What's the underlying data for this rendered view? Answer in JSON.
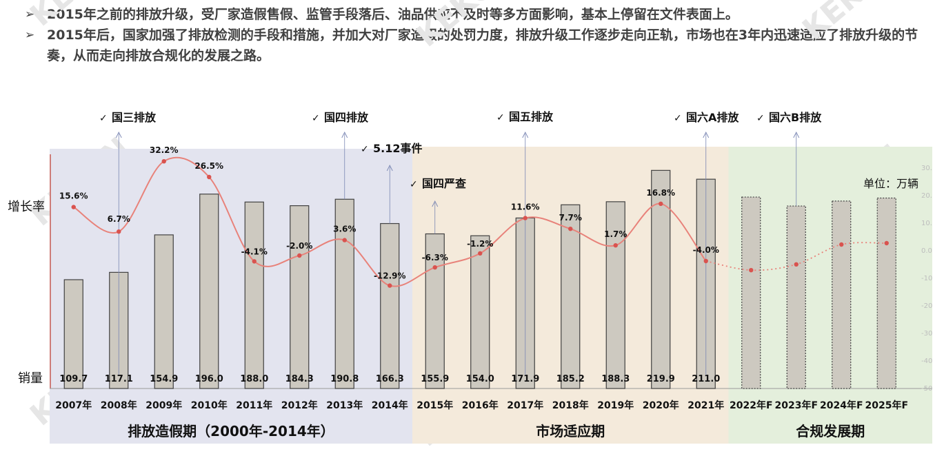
{
  "bullets": [
    {
      "marker": "➢",
      "text": "2015年之前的排放升级，受厂家造假售假、监管手段落后、油品供应不及时等多方面影响，基本上停留在文件表面上。"
    },
    {
      "marker": "➢",
      "text": "2015年后，国家加强了排放检测的手段和措施，并加大对厂家造假的处罚力度，排放升级工作逐步走向正轨，市场也在3年内迅速适应了排放升级的节奏，从而走向排放合规化的发展之路。"
    }
  ],
  "chart_data": {
    "type": "bar+line",
    "categories": [
      "2007年",
      "2008年",
      "2009年",
      "2010年",
      "2011年",
      "2012年",
      "2013年",
      "2014年",
      "2015年",
      "2016年",
      "2017年",
      "2018年",
      "2019年",
      "2020年",
      "2021年",
      "2022年F",
      "2023年F",
      "2024年F",
      "2025年F"
    ],
    "sales": [
      109.7,
      117.1,
      154.9,
      196.0,
      188.0,
      184.3,
      190.8,
      166.3,
      155.9,
      154.0,
      171.9,
      185.2,
      188.3,
      219.9,
      211.0,
      null,
      null,
      null,
      null
    ],
    "sales_forecast": [
      null,
      null,
      null,
      null,
      null,
      null,
      null,
      null,
      null,
      null,
      null,
      null,
      null,
      null,
      null,
      193,
      184,
      189,
      192
    ],
    "growth": [
      15.6,
      6.7,
      32.2,
      26.5,
      -4.1,
      -2.0,
      3.6,
      -12.9,
      -6.3,
      -1.2,
      11.6,
      7.7,
      1.7,
      16.8,
      -4.0,
      -7.3,
      -5.2,
      2.0,
      2.5
    ],
    "growth_labels": [
      "15.6%",
      "6.7%",
      "32.2%",
      "26.5%",
      "-4.1%",
      "-2.0%",
      "3.6%",
      "-12.9%",
      "-6.3%",
      "-1.2%",
      "11.6%",
      "7.7%",
      "1.7%",
      "16.8%",
      "-4.0%",
      "",
      "",
      "",
      ""
    ],
    "forecast_start_index": 14,
    "left_label_growth": "增长率",
    "left_label_sales": "销量",
    "unit_label": "单位：万辆",
    "right_axis_ticks": [
      "30.",
      "20.",
      "10.",
      "0.0",
      "-10",
      "-20",
      "-30",
      "-40",
      "-50"
    ],
    "growth_range": [
      -50,
      30
    ],
    "sales_range": [
      0,
      300
    ],
    "periods": [
      {
        "label": "排放造假期（2000年-2014年）",
        "color": "#e3e4ef",
        "from": 0,
        "to": 7
      },
      {
        "label": "市场适应期",
        "color": "#f4eadb",
        "from": 8,
        "to": 14
      },
      {
        "label": "合规发展期",
        "color": "#e4efdc",
        "from": 15,
        "to": 18
      }
    ],
    "events": [
      {
        "label": "国三排放",
        "index": 1,
        "level": "high"
      },
      {
        "label": "国四排放",
        "index": 6,
        "level": "high"
      },
      {
        "label": "5.12事件",
        "index": 7,
        "level": "mid"
      },
      {
        "label": "国四严查",
        "index": 8,
        "level": "low"
      },
      {
        "label": "国五排放",
        "index": 10,
        "level": "high"
      },
      {
        "label": "国六A排放",
        "index": 14,
        "level": "high"
      },
      {
        "label": "国六B排放",
        "index": 16,
        "level": "high"
      }
    ],
    "event_marker": "✓",
    "watermark": "KEKON",
    "colors": {
      "bar": "#cdc9c0",
      "bar_stroke": "#404040",
      "line": "#e8827a",
      "point": "#d9534f",
      "event_line": "#7a86b3",
      "axis": "#b0b0b0"
    }
  }
}
